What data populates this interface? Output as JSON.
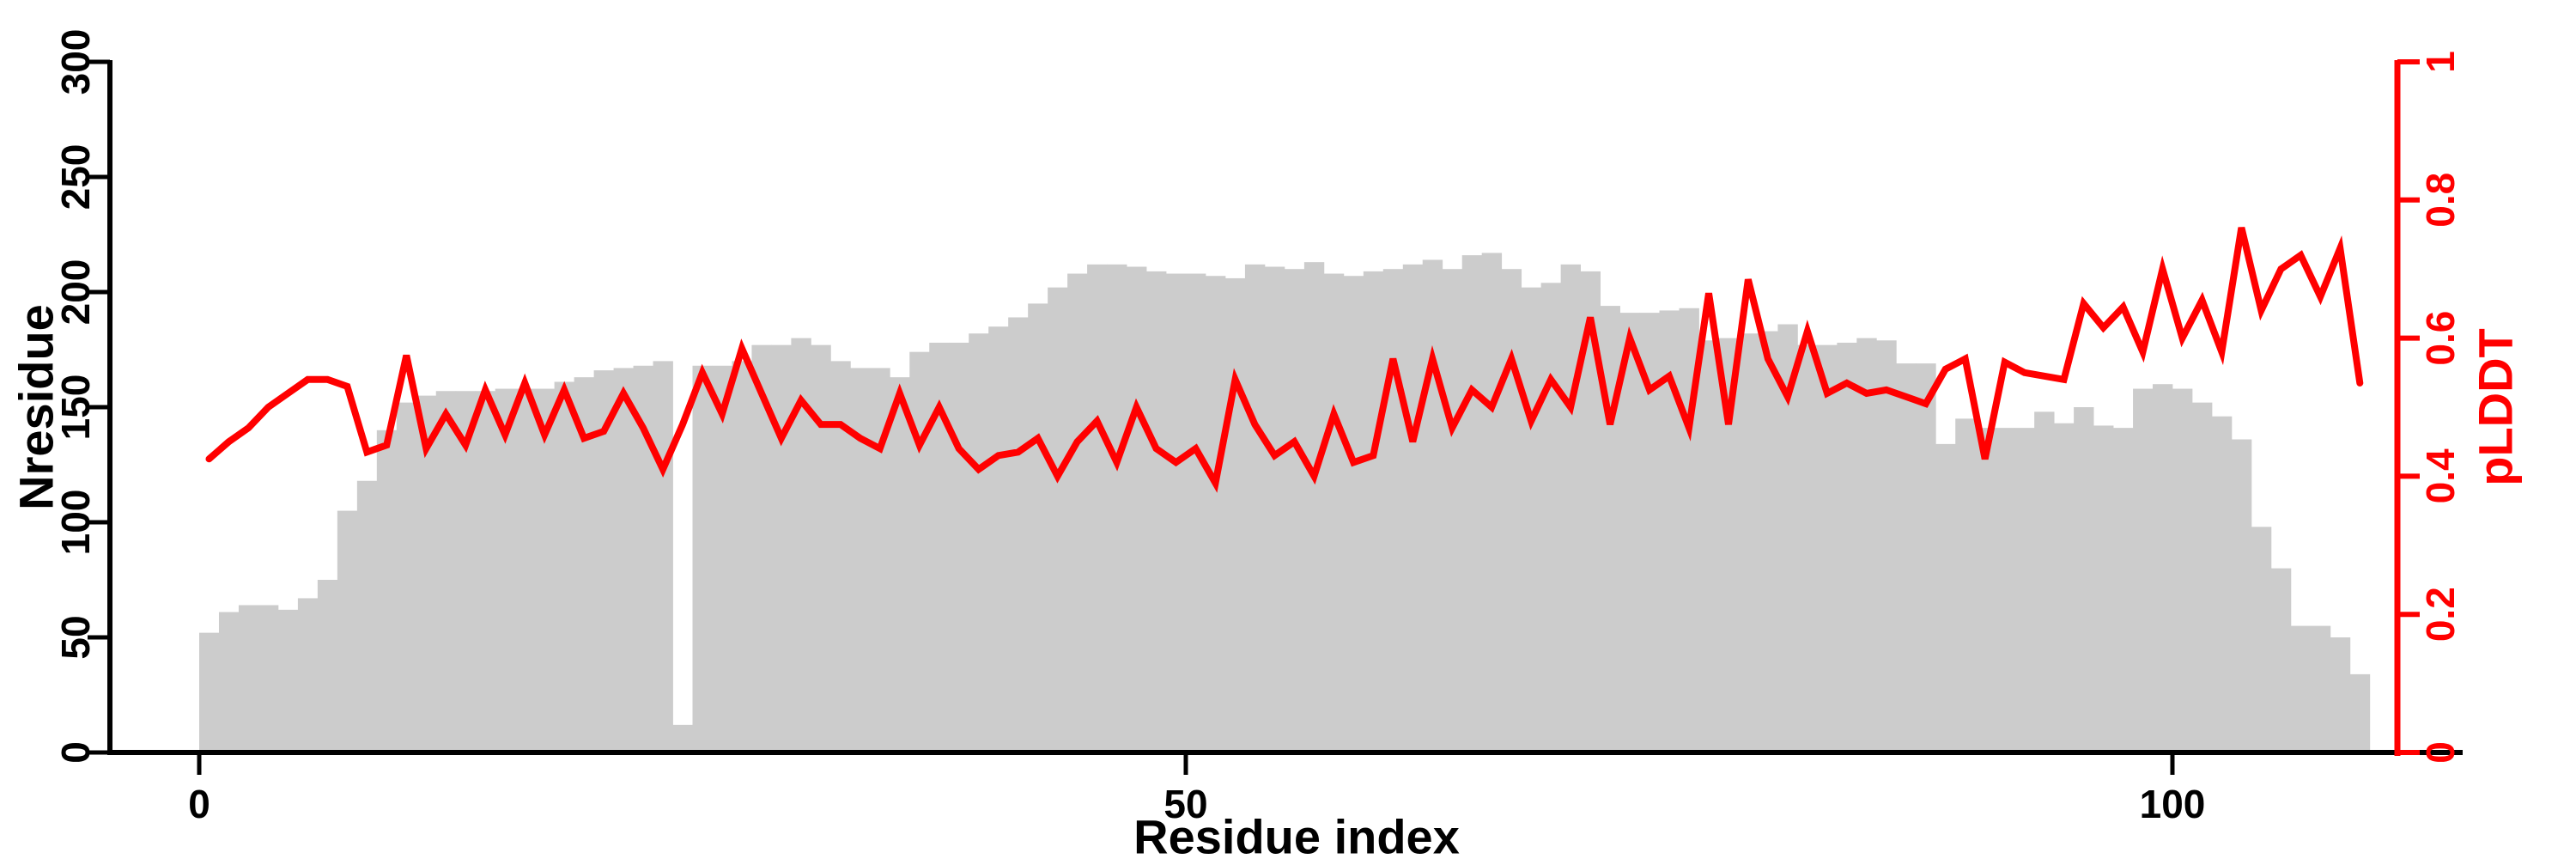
{
  "chart_data": {
    "type": "combo: bar (left axis) + line (right axis)",
    "title": "",
    "xlabel": "Residue index",
    "ylabel_left": "Nresidue",
    "ylabel_right": "pLDDT",
    "xlim": [
      0,
      114
    ],
    "ylim_left": [
      0,
      300
    ],
    "ylim_right": [
      0,
      1
    ],
    "grid": false,
    "legend": null,
    "x_ticks": {
      "values": [
        0,
        50,
        100
      ],
      "labels": [
        "0",
        "50",
        "100"
      ]
    },
    "y_ticks_left": {
      "values": [
        0,
        50,
        100,
        150,
        200,
        250,
        300
      ],
      "labels": [
        "0",
        "50",
        "100",
        "150",
        "200",
        "250",
        "300"
      ]
    },
    "y_ticks_right": {
      "values": [
        0,
        0.2,
        0.4,
        0.6,
        0.8,
        1
      ],
      "labels": [
        "0",
        "0.2",
        "0.4",
        "0.6",
        "0.8",
        "1"
      ]
    },
    "bars": {
      "name": "Nresidue",
      "color": "#cccccc",
      "first_residue": 0,
      "bar_width_residues": 1,
      "values": [
        52,
        61,
        64,
        64,
        62,
        67,
        75,
        105,
        118,
        140,
        152,
        155,
        157,
        157,
        157,
        158,
        158,
        158,
        161,
        163,
        166,
        167,
        168,
        170,
        12,
        168,
        168,
        170,
        177,
        177,
        180,
        177,
        170,
        167,
        167,
        163,
        174,
        178,
        178,
        182,
        185,
        189,
        195,
        202,
        208,
        212,
        212,
        211,
        209,
        208,
        208,
        207,
        206,
        212,
        211,
        210,
        213,
        208,
        207,
        209,
        210,
        212,
        214,
        210,
        216,
        217,
        210,
        202,
        204,
        212,
        209,
        194,
        191,
        191,
        192,
        193,
        179,
        180,
        182,
        183,
        186,
        177,
        177,
        178,
        180,
        179,
        169,
        169,
        134,
        145,
        141,
        141,
        141,
        148,
        143,
        150,
        142,
        141,
        158,
        160,
        158,
        152,
        146,
        136,
        98,
        80,
        55,
        55,
        50,
        34
      ]
    },
    "line": {
      "name": "pLDDT",
      "color": "#ff0000",
      "first_x": 0.5,
      "x_step": 1,
      "values": [
        0.425,
        0.45,
        0.47,
        0.5,
        0.52,
        0.54,
        0.54,
        0.53,
        0.435,
        0.445,
        0.575,
        0.44,
        0.49,
        0.445,
        0.525,
        0.46,
        0.535,
        0.46,
        0.525,
        0.455,
        0.465,
        0.52,
        0.47,
        0.41,
        0.475,
        0.55,
        0.49,
        0.585,
        0.52,
        0.455,
        0.51,
        0.475,
        0.475,
        0.455,
        0.44,
        0.52,
        0.445,
        0.5,
        0.44,
        0.41,
        0.43,
        0.435,
        0.455,
        0.4,
        0.45,
        0.48,
        0.42,
        0.5,
        0.44,
        0.42,
        0.44,
        0.39,
        0.54,
        0.475,
        0.43,
        0.45,
        0.4,
        0.49,
        0.42,
        0.43,
        0.57,
        0.45,
        0.57,
        0.47,
        0.525,
        0.5,
        0.57,
        0.48,
        0.54,
        0.5,
        0.63,
        0.475,
        0.6,
        0.525,
        0.545,
        0.47,
        0.665,
        0.475,
        0.685,
        0.57,
        0.515,
        0.61,
        0.52,
        0.535,
        0.52,
        0.525,
        0.515,
        0.505,
        0.555,
        0.57,
        0.425,
        0.565,
        0.55,
        0.545,
        0.54,
        0.65,
        0.615,
        0.645,
        0.58,
        0.7,
        0.6,
        0.655,
        0.58,
        0.76,
        0.64,
        0.7,
        0.72,
        0.66,
        0.73,
        0.535
      ]
    }
  },
  "colors": {
    "background": "#ffffff",
    "bar": "#cccccc",
    "line": "#ff0000",
    "left_axis": "#000000",
    "right_axis": "#ff0000",
    "tick_label": "#000000",
    "right_tick_label": "#ff0000"
  }
}
